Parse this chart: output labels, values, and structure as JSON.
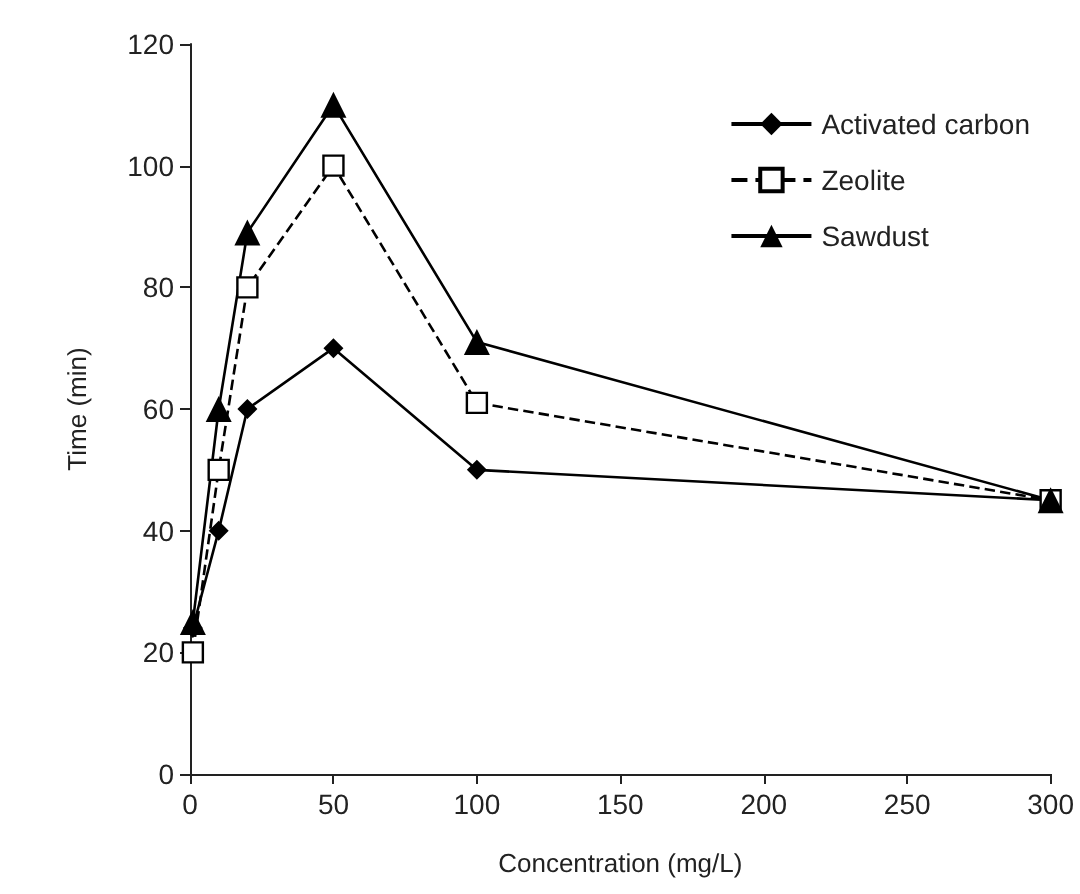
{
  "chart_data": {
    "type": "line",
    "xlabel": "Concentration (mg/L)",
    "ylabel": "Time (min)",
    "xlim": [
      0,
      300
    ],
    "xticks": [
      0,
      50,
      100,
      150,
      200,
      250,
      300
    ],
    "ylim": [
      0,
      120
    ],
    "yticks": [
      0,
      20,
      40,
      60,
      80,
      100,
      120
    ],
    "grid": false,
    "legend": "top right",
    "x": [
      1,
      10,
      20,
      50,
      100,
      300
    ],
    "series": [
      {
        "name": "Activated carbon",
        "color": "#000000",
        "marker": "diamond",
        "line_style": "solid",
        "values": [
          24,
          40,
          60,
          70,
          50,
          45
        ]
      },
      {
        "name": "Zeolite",
        "color": "#000000",
        "marker": "square",
        "line_style": "dashed",
        "values": [
          20,
          50,
          80,
          100,
          61,
          45
        ]
      },
      {
        "name": "Sawdust",
        "color": "#000000",
        "marker": "triangle",
        "line_style": "solid",
        "values": [
          25,
          60,
          89,
          110,
          71,
          45
        ]
      }
    ]
  }
}
